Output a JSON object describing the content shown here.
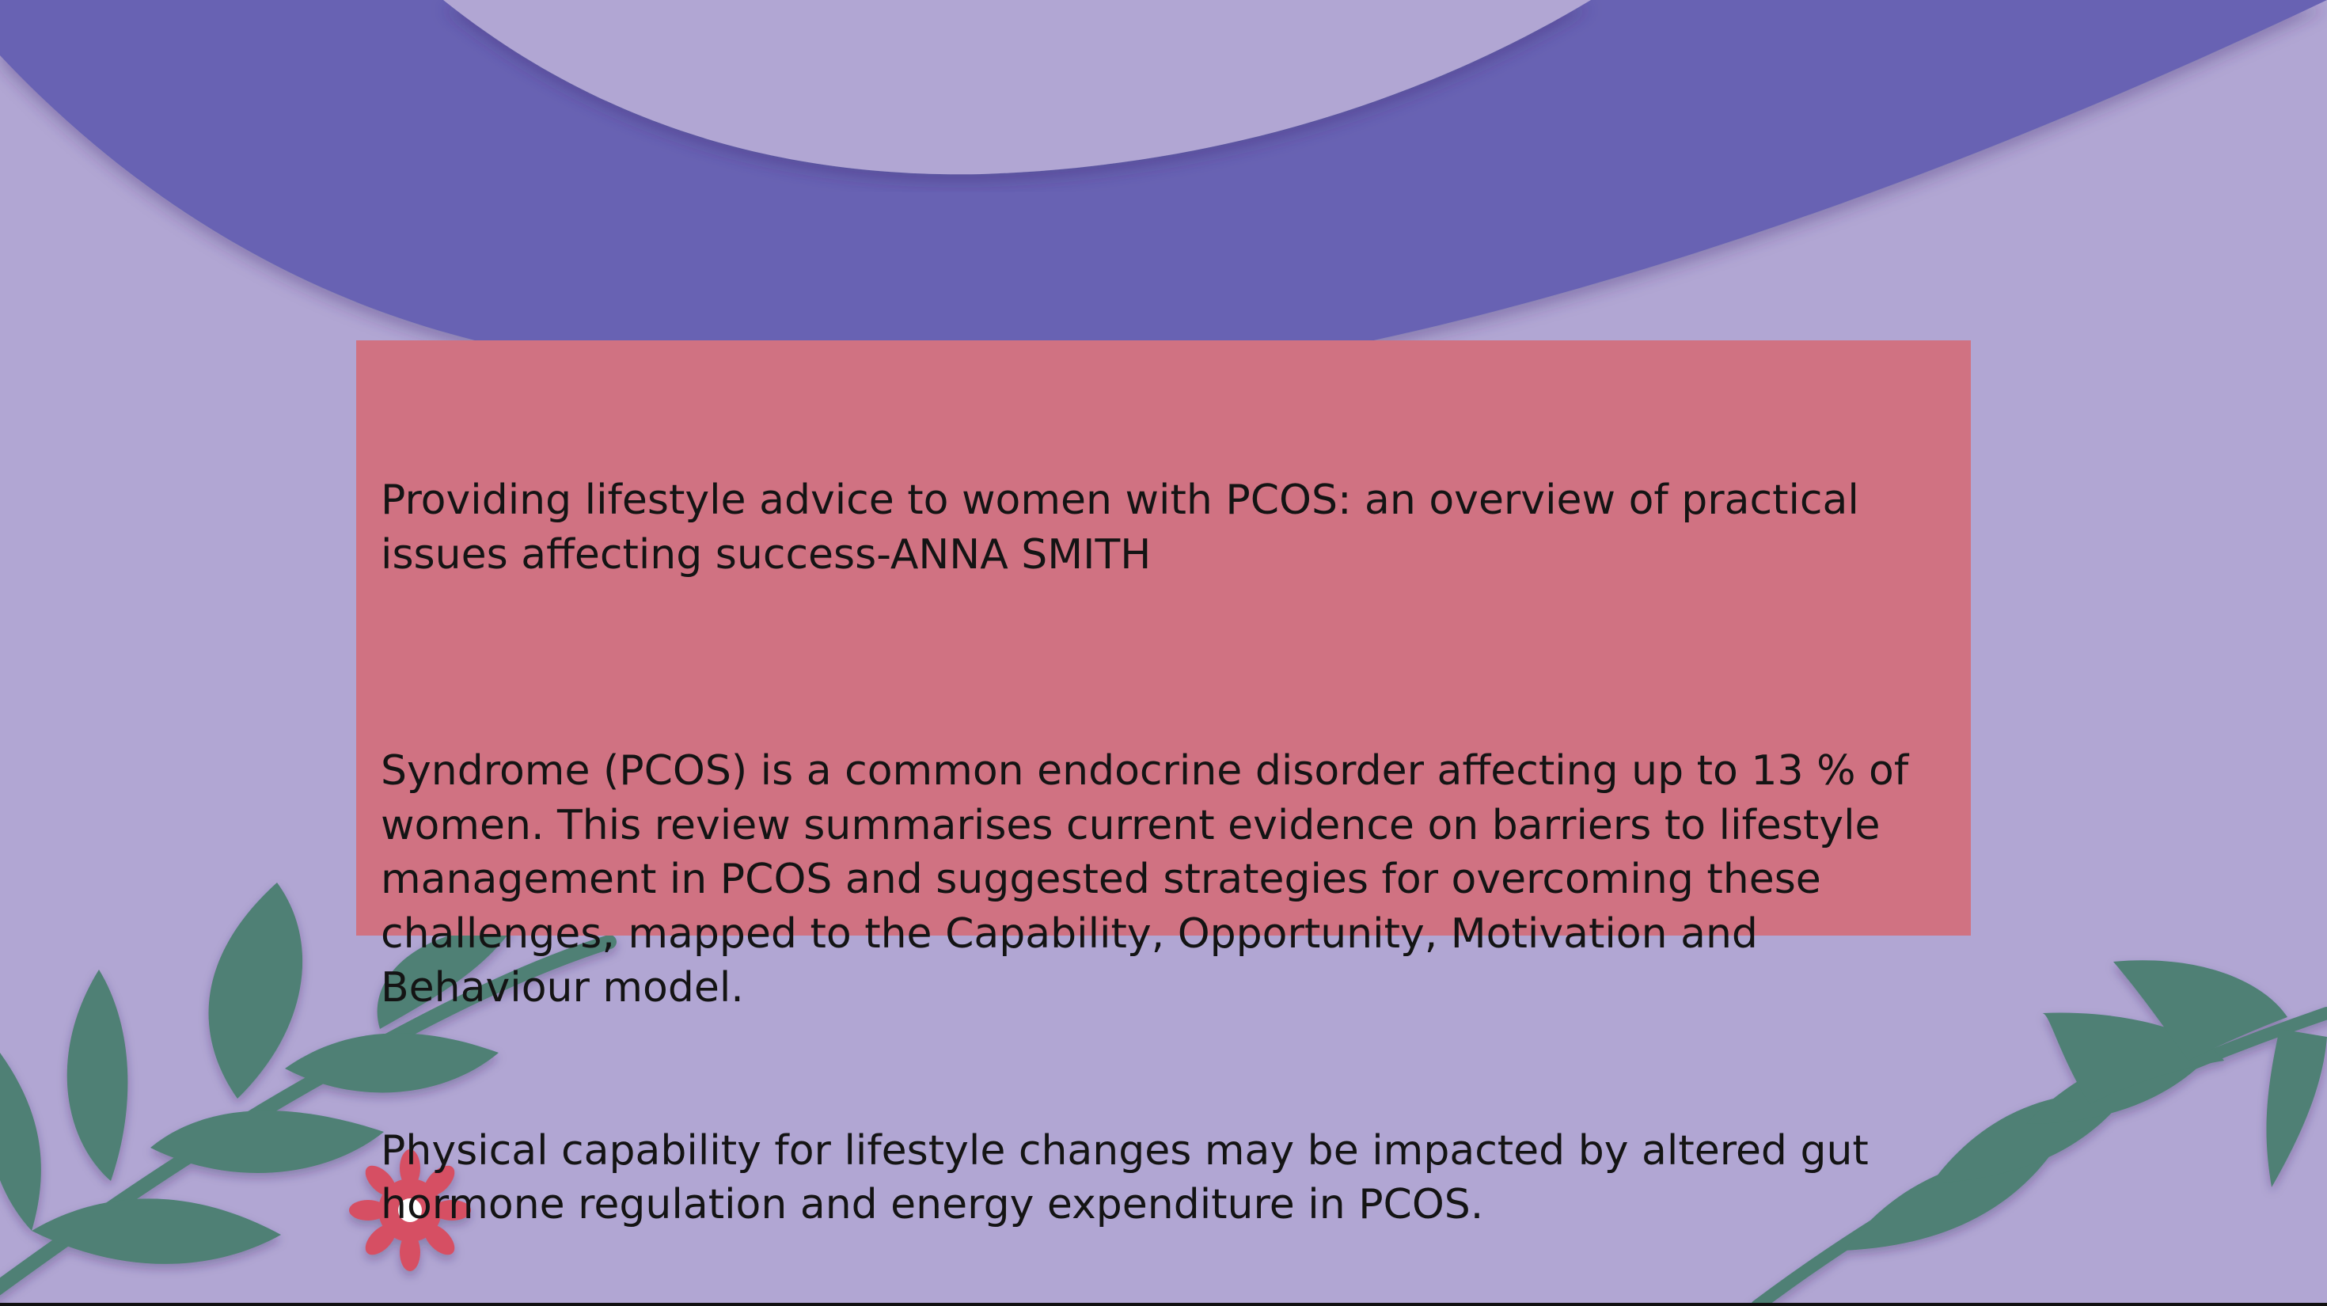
{
  "slide": {
    "colors": {
      "background": "#b1a6d3",
      "arc": "#6762b3",
      "text_box": "#d07282",
      "leaf": "#4f8074",
      "flower": "#d65064"
    },
    "heading": "Providing lifestyle advice to women with PCOS: an overview of practical issues affecting success-ANNA SMITH",
    "paragraph_1": "Syndrome (PCOS) is a common endocrine disorder affecting up to 13 % of women. This review summarises current evidence on barriers to lifestyle management in PCOS and suggested strategies for overcoming these challenges, mapped to the Capability, Opportunity, Motivation and Behaviour model.",
    "paragraph_2": "Physical capability for lifestyle changes may be impacted by altered gut hormone regulation and energy expenditure in PCOS."
  }
}
